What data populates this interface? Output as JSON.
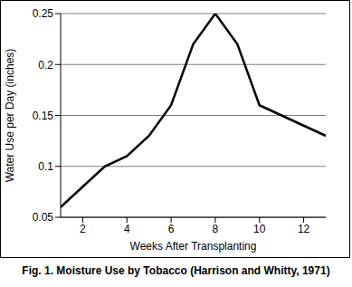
{
  "chart_data": {
    "type": "line",
    "title": "Fig. 1. Moisture Use by Tobacco (Harrison and Whitty, 1971)",
    "x_label": "Weeks After Transplanting",
    "y_label": "Water Use per Day (inches)",
    "x": [
      1,
      2,
      3,
      4,
      5,
      6,
      7,
      8,
      9,
      10,
      11,
      12,
      13
    ],
    "values": [
      0.06,
      0.08,
      0.1,
      0.11,
      0.13,
      0.16,
      0.22,
      0.25,
      0.22,
      0.16,
      0.15,
      0.14,
      0.13
    ],
    "color": "#000000",
    "xlim": [
      1,
      13
    ],
    "xticks": [
      2,
      4,
      6,
      8,
      10,
      12
    ],
    "ylim": [
      0.05,
      0.25
    ],
    "yticks": [
      0.05,
      0.1,
      0.15,
      0.2,
      0.25
    ],
    "grid": true
  }
}
